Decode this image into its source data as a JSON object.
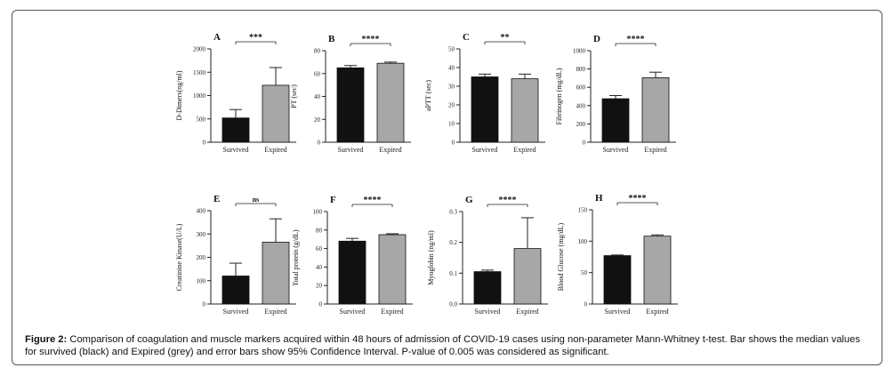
{
  "colors": {
    "survived": "#111111",
    "expired": "#a7a7a7",
    "axis": "#222222"
  },
  "caption": {
    "label": "Figure 2:",
    "text": " Comparison of coagulation and muscle markers acquired within 48 hours of admission of COVID-19 cases using non-parameter Mann-Whitney t-test. Bar shows the median values for survived (black) and Expired (grey) and error bars show 95% Confidence Interval. P-value of 0.005 was considered as significant."
  },
  "chart_data": [
    {
      "type": "bar",
      "panel": "A",
      "ylabel": "D-Dimers(ng/ml)",
      "categories": [
        "Survived",
        "Expired"
      ],
      "values": [
        520,
        1220
      ],
      "error_upper": [
        700,
        1600
      ],
      "ylim": [
        0,
        2000
      ],
      "yticks": [
        "0",
        "500",
        "1000",
        "1500",
        "2000"
      ],
      "yticks_v": [
        0,
        500,
        1000,
        1500,
        2000
      ],
      "significance": "***",
      "grid": false
    },
    {
      "type": "bar",
      "panel": "B",
      "ylabel": "PT (sec)",
      "categories": [
        "Survived",
        "Expired"
      ],
      "values": [
        65,
        69
      ],
      "error_upper": [
        67,
        70
      ],
      "ylim": [
        0,
        80
      ],
      "yticks": [
        "0",
        "20",
        "40",
        "60",
        "80"
      ],
      "yticks_v": [
        0,
        20,
        40,
        60,
        80
      ],
      "significance": "****",
      "grid": false
    },
    {
      "type": "bar",
      "panel": "C",
      "ylabel": "aPTT (sec)",
      "categories": [
        "Survived",
        "Expired"
      ],
      "values": [
        35,
        34
      ],
      "error_upper": [
        36.5,
        36.5
      ],
      "ylim": [
        0,
        50
      ],
      "yticks": [
        "0",
        "10",
        "20",
        "30",
        "40",
        "50"
      ],
      "yticks_v": [
        0,
        10,
        20,
        30,
        40,
        50
      ],
      "significance": "**",
      "grid": false
    },
    {
      "type": "bar",
      "panel": "D",
      "ylabel": "Fibrinogen (mg/dL)",
      "categories": [
        "Survived",
        "Expired"
      ],
      "values": [
        475,
        705
      ],
      "error_upper": [
        510,
        765
      ],
      "ylim": [
        0,
        1000
      ],
      "yticks": [
        "0",
        "200",
        "400",
        "600",
        "800",
        "1000"
      ],
      "yticks_v": [
        0,
        200,
        400,
        600,
        800,
        1000
      ],
      "significance": "****",
      "grid": false
    },
    {
      "type": "bar",
      "panel": "E",
      "ylabel": "Creatinine Kinase(U/L)",
      "categories": [
        "Survived",
        "Expired"
      ],
      "values": [
        120,
        265
      ],
      "error_upper": [
        175,
        365
      ],
      "ylim": [
        0,
        400
      ],
      "yticks": [
        "0",
        "100",
        "200",
        "300",
        "400"
      ],
      "yticks_v": [
        0,
        100,
        200,
        300,
        400
      ],
      "significance": "ns",
      "grid": false
    },
    {
      "type": "bar",
      "panel": "F",
      "ylabel": "Total protein (g/dL)",
      "categories": [
        "Survived",
        "Expired"
      ],
      "values": [
        68,
        75
      ],
      "error_upper": [
        71,
        76
      ],
      "ylim": [
        0,
        100
      ],
      "yticks": [
        "0",
        "20",
        "40",
        "60",
        "80",
        "100"
      ],
      "yticks_v": [
        0,
        20,
        40,
        60,
        80,
        100
      ],
      "significance": "****",
      "grid": false
    },
    {
      "type": "bar",
      "panel": "G",
      "ylabel": "Myoglobin (ng/ml)",
      "categories": [
        "Survived",
        "Expired"
      ],
      "values": [
        0.105,
        0.18
      ],
      "error_upper": [
        0.11,
        0.28
      ],
      "ylim": [
        0,
        0.3
      ],
      "yticks": [
        "0.0",
        "0.1",
        "0.2",
        "0.3"
      ],
      "yticks_v": [
        0,
        0.1,
        0.2,
        0.3
      ],
      "significance": "****",
      "grid": false
    },
    {
      "type": "bar",
      "panel": "H",
      "ylabel": "Blood Glucose (mg/dL)",
      "categories": [
        "Survived",
        "Expired"
      ],
      "values": [
        77,
        108
      ],
      "error_upper": [
        78,
        110
      ],
      "ylim": [
        0,
        150
      ],
      "yticks": [
        "0",
        "50",
        "100",
        "150"
      ],
      "yticks_v": [
        0,
        50,
        100,
        150
      ],
      "significance": "****",
      "grid": false
    }
  ]
}
